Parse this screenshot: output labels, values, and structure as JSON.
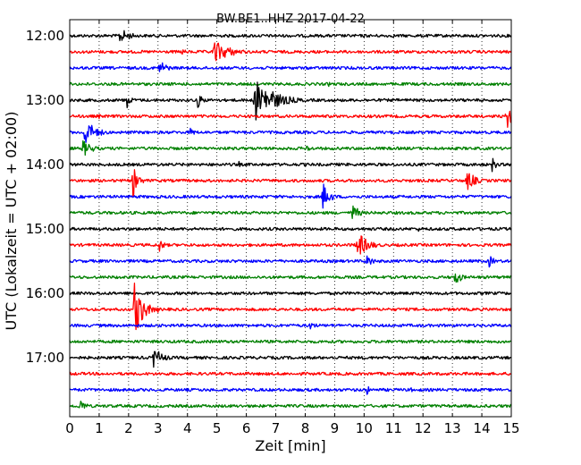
{
  "chart_data": {
    "type": "line",
    "title": "BW.BE1..HHZ 2017-04-22",
    "xlabel": "Zeit  [min]",
    "ylabel": "UTC (Lokalzeit = UTC + 02:00)",
    "xlim": [
      0,
      15
    ],
    "x_ticks": [
      0,
      1,
      2,
      3,
      4,
      5,
      6,
      7,
      8,
      9,
      10,
      11,
      12,
      13,
      14,
      15
    ],
    "x_tick_labels": [
      "0",
      "1",
      "2",
      "3",
      "4",
      "5",
      "6",
      "7",
      "8",
      "9",
      "10",
      "11",
      "12",
      "13",
      "14",
      "15"
    ],
    "y_tick_labels": [
      "12:00",
      "13:00",
      "14:00",
      "15:00",
      "16:00",
      "17:00"
    ],
    "grid": true,
    "trace_colors": [
      "#000000",
      "#ff0000",
      "#0000ff",
      "#008000"
    ],
    "series": [
      {
        "time": "12:00",
        "events": [
          {
            "t": 1.7,
            "amp": 0.5,
            "dur": 0.8
          },
          {
            "t": 10.0,
            "amp": 0.15,
            "dur": 0.2
          }
        ]
      },
      {
        "time": "12:15",
        "events": [
          {
            "t": 4.9,
            "amp": 0.75,
            "dur": 1.2
          },
          {
            "t": 3.8,
            "amp": 0.2,
            "dur": 0.5
          }
        ]
      },
      {
        "time": "12:30",
        "events": [
          {
            "t": 3.05,
            "amp": 0.6,
            "dur": 0.5
          }
        ]
      },
      {
        "time": "12:45",
        "events": [
          {
            "t": 8.8,
            "amp": 0.15,
            "dur": 0.3
          }
        ]
      },
      {
        "time": "13:00",
        "events": [
          {
            "t": 1.95,
            "amp": 0.5,
            "dur": 0.3
          },
          {
            "t": 4.35,
            "amp": 0.5,
            "dur": 0.4
          },
          {
            "t": 6.3,
            "amp": 1.4,
            "dur": 1.4
          }
        ]
      },
      {
        "time": "13:15",
        "events": [
          {
            "t": 14.85,
            "amp": 0.8,
            "dur": 0.5
          },
          {
            "t": 1.0,
            "amp": 0.2,
            "dur": 0.1
          }
        ]
      },
      {
        "time": "13:30",
        "events": [
          {
            "t": 0.5,
            "amp": 0.9,
            "dur": 0.8
          },
          {
            "t": 4.1,
            "amp": 0.3,
            "dur": 0.4
          }
        ]
      },
      {
        "time": "13:45",
        "events": [
          {
            "t": 0.45,
            "amp": 0.55,
            "dur": 0.7
          },
          {
            "t": 8.05,
            "amp": 0.3,
            "dur": 0.3
          }
        ]
      },
      {
        "time": "14:00",
        "events": [
          {
            "t": 14.35,
            "amp": 0.5,
            "dur": 0.3
          },
          {
            "t": 5.75,
            "amp": 0.2,
            "dur": 0.15
          }
        ]
      },
      {
        "time": "14:15",
        "events": [
          {
            "t": 2.15,
            "amp": 1.0,
            "dur": 0.4
          },
          {
            "t": 13.5,
            "amp": 0.7,
            "dur": 0.6
          }
        ]
      },
      {
        "time": "14:30",
        "events": [
          {
            "t": 8.6,
            "amp": 0.9,
            "dur": 0.5
          }
        ]
      },
      {
        "time": "14:45",
        "events": [
          {
            "t": 9.6,
            "amp": 0.6,
            "dur": 0.5
          }
        ]
      },
      {
        "time": "15:00",
        "events": [
          {
            "t": 11.85,
            "amp": 0.15,
            "dur": 0.1
          }
        ]
      },
      {
        "time": "15:15",
        "events": [
          {
            "t": 3.05,
            "amp": 0.5,
            "dur": 0.3
          },
          {
            "t": 9.75,
            "amp": 0.9,
            "dur": 0.8
          }
        ]
      },
      {
        "time": "15:30",
        "events": [
          {
            "t": 10.1,
            "amp": 0.5,
            "dur": 0.4
          },
          {
            "t": 14.25,
            "amp": 0.4,
            "dur": 0.4
          },
          {
            "t": 8.5,
            "amp": 0.15,
            "dur": 0.2
          }
        ]
      },
      {
        "time": "15:45",
        "events": [
          {
            "t": 13.05,
            "amp": 0.6,
            "dur": 0.5
          }
        ]
      },
      {
        "time": "16:00",
        "events": []
      },
      {
        "time": "16:15",
        "events": [
          {
            "t": 2.2,
            "amp": 1.9,
            "dur": 0.6
          },
          {
            "t": 3.0,
            "amp": 0.2,
            "dur": 0.1
          }
        ]
      },
      {
        "time": "16:30",
        "events": [
          {
            "t": 8.15,
            "amp": 0.3,
            "dur": 0.5
          }
        ]
      },
      {
        "time": "16:45",
        "events": []
      },
      {
        "time": "17:00",
        "events": [
          {
            "t": 2.85,
            "amp": 0.65,
            "dur": 0.7
          }
        ]
      },
      {
        "time": "17:15",
        "events": [
          {
            "t": 7.0,
            "amp": 0.1,
            "dur": 0.1
          }
        ]
      },
      {
        "time": "17:30",
        "events": [
          {
            "t": 10.1,
            "amp": 0.3,
            "dur": 0.3
          },
          {
            "t": 11.6,
            "amp": 0.15,
            "dur": 0.2
          }
        ]
      },
      {
        "time": "17:45",
        "events": [
          {
            "t": 0.35,
            "amp": 0.5,
            "dur": 0.4
          },
          {
            "t": 1.3,
            "amp": 0.15,
            "dur": 0.1
          },
          {
            "t": 6.35,
            "amp": 0.15,
            "dur": 0.2
          }
        ]
      }
    ]
  }
}
